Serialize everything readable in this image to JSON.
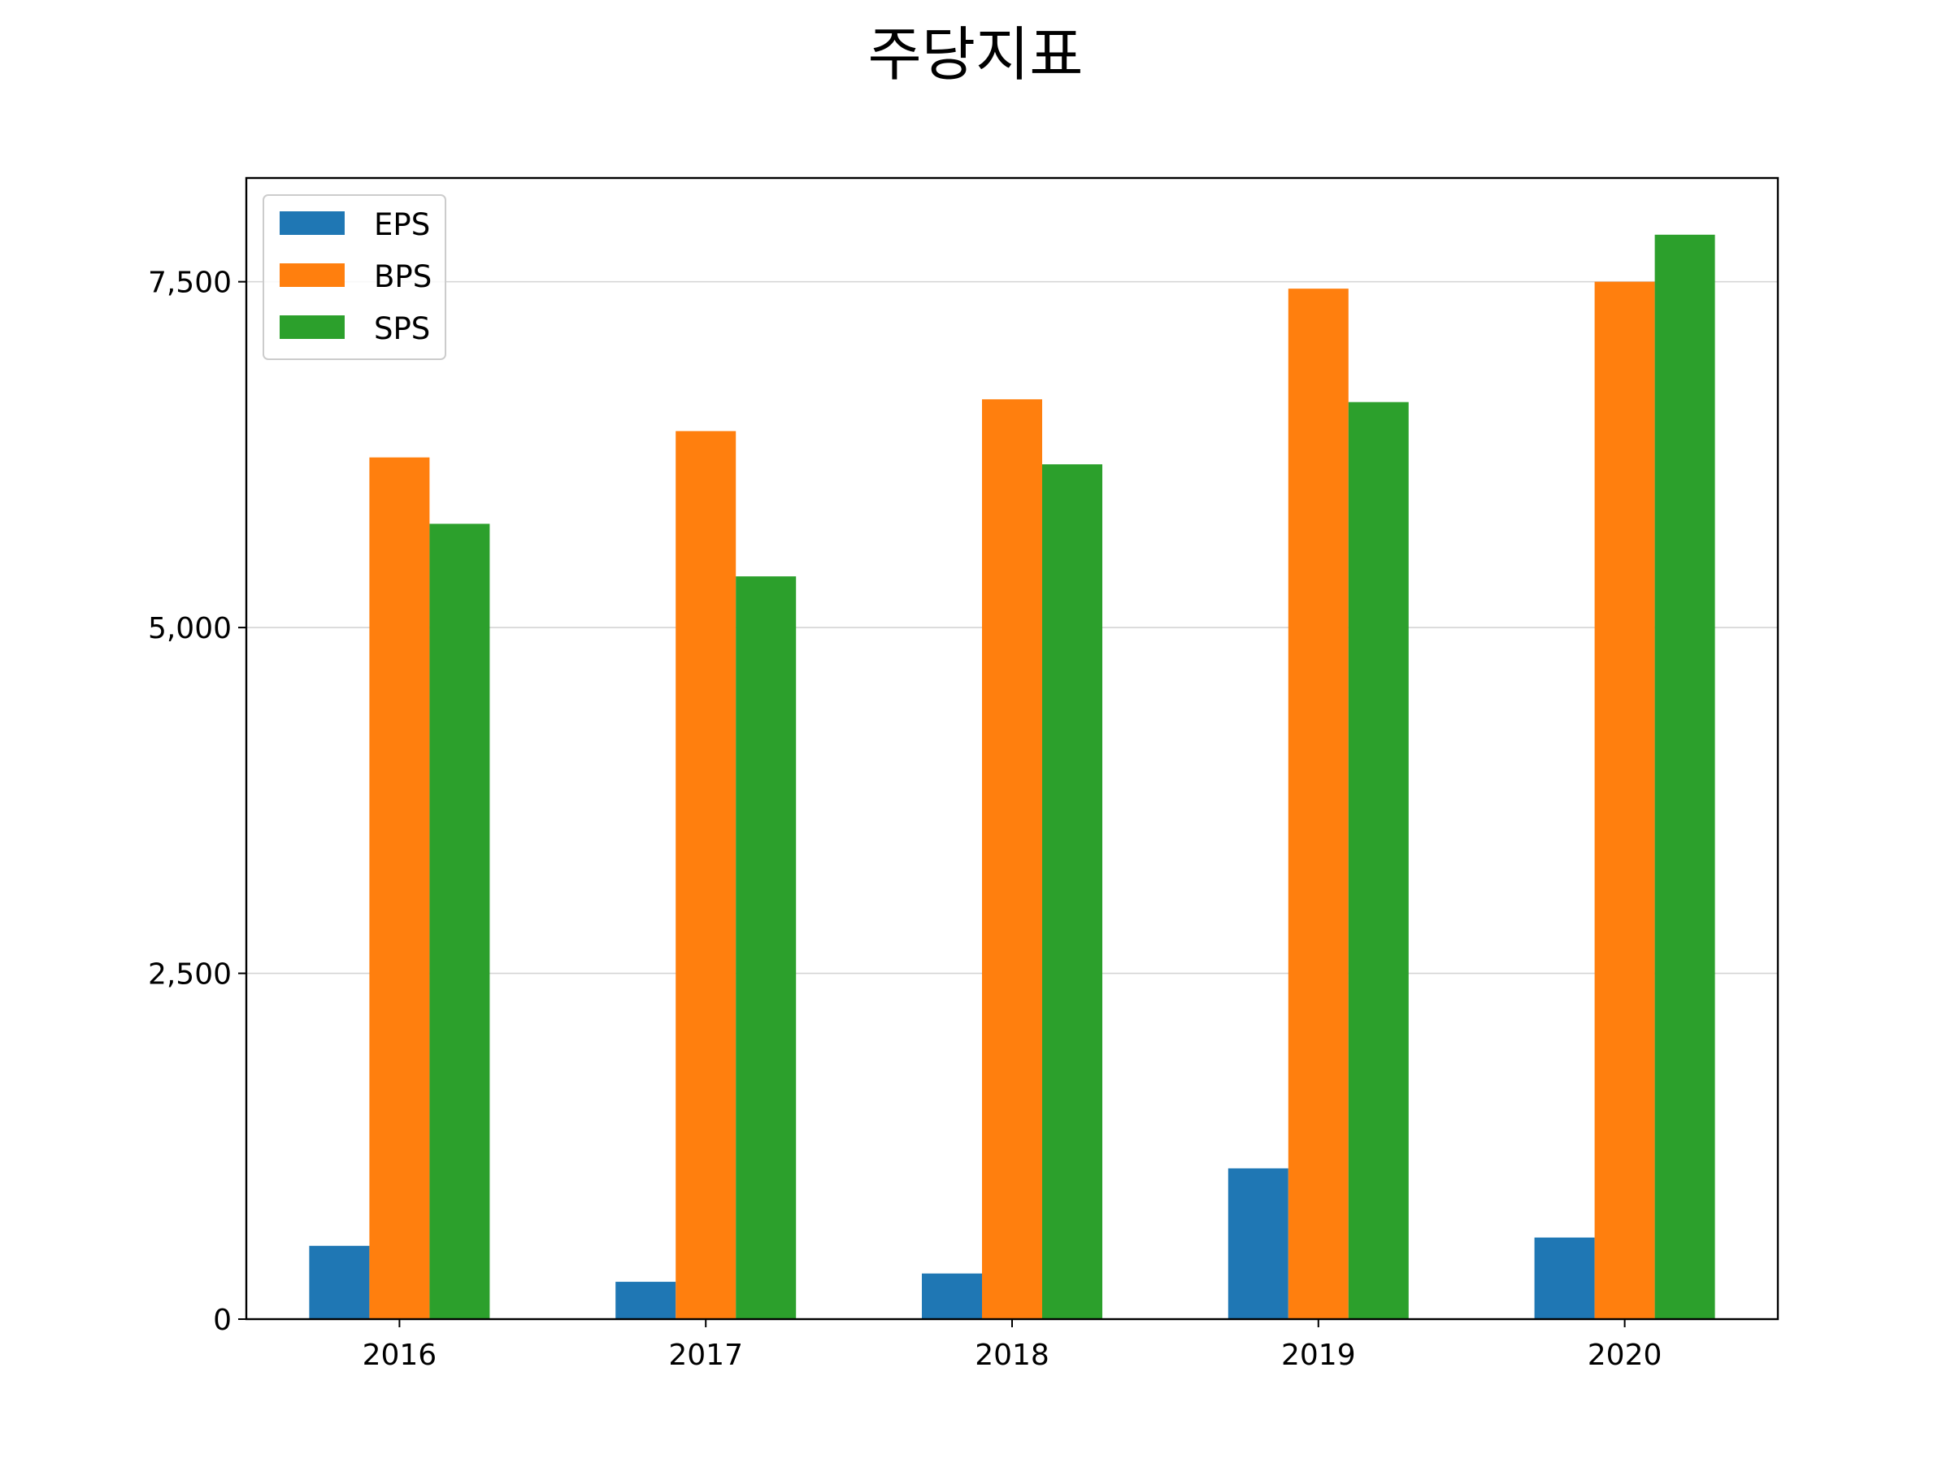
{
  "chart_data": {
    "type": "bar",
    "title": "주당지표",
    "xlabel": "",
    "ylabel": "",
    "categories": [
      "2016",
      "2017",
      "2018",
      "2019",
      "2020"
    ],
    "series": [
      {
        "name": "EPS",
        "color": "#1f77b4",
        "values": [
          530,
          270,
          330,
          1090,
          590
        ]
      },
      {
        "name": "BPS",
        "color": "#ff7f0e",
        "values": [
          6230,
          6420,
          6650,
          7450,
          7500
        ]
      },
      {
        "name": "SPS",
        "color": "#2ca02c",
        "values": [
          5750,
          5370,
          6180,
          6630,
          7840
        ]
      }
    ],
    "ylim": [
      0,
      8250
    ],
    "yticks": [
      0,
      2500,
      5000,
      7500
    ],
    "ytick_labels": [
      "0",
      "2,500",
      "5,000",
      "7,500"
    ],
    "grid": {
      "y": true,
      "x": false
    },
    "legend": "top-left"
  }
}
